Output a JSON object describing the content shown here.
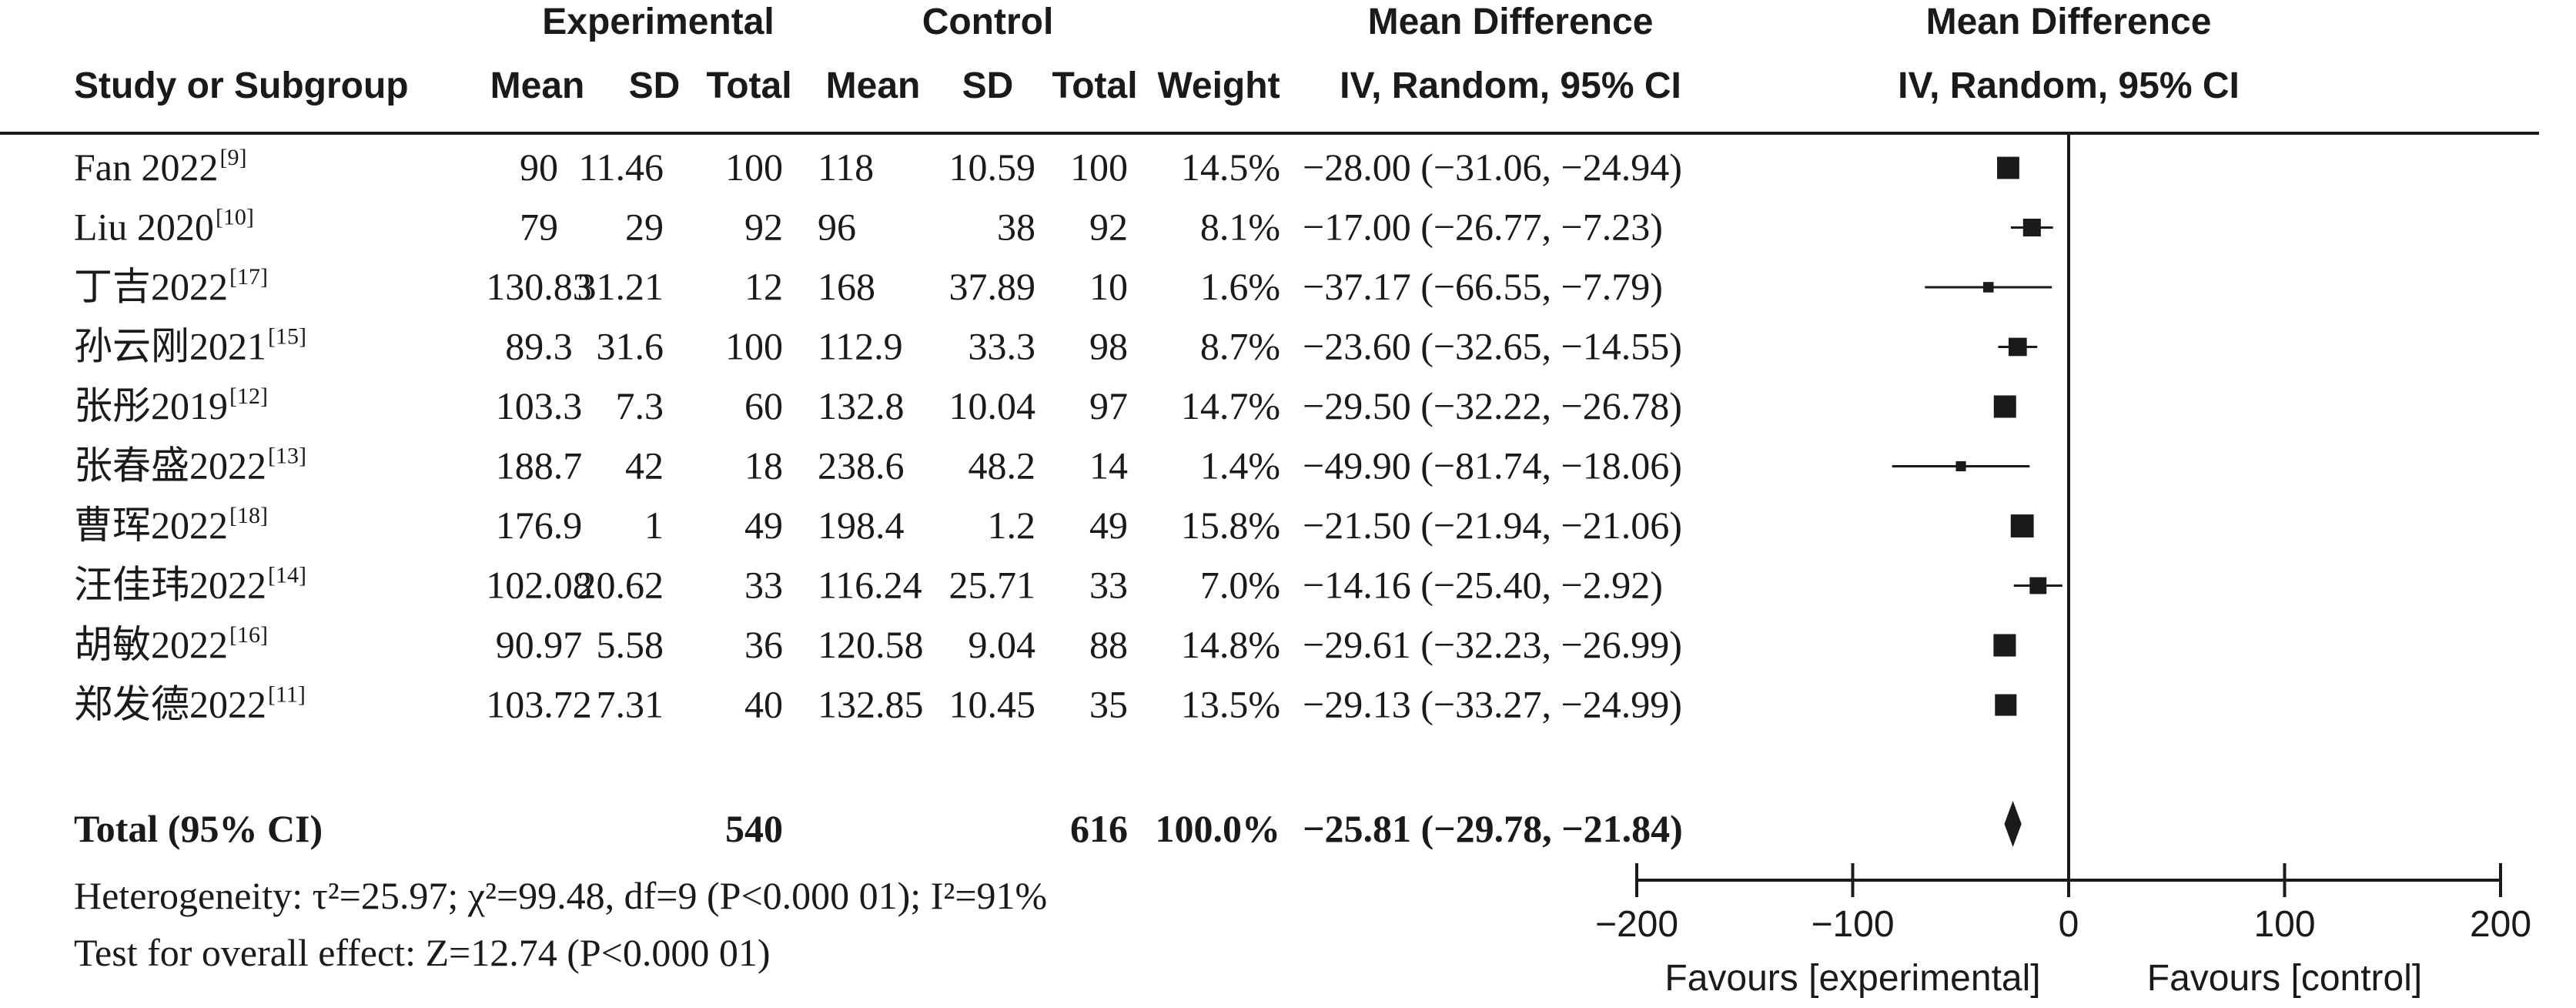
{
  "headers": {
    "experimental": "Experimental",
    "control": "Control",
    "mean_difference": "Mean Difference",
    "mean_difference_plot": "Mean Difference",
    "study": "Study or Subgroup",
    "mean": "Mean",
    "sd": "SD",
    "total": "Total",
    "mean_c": "Mean",
    "sd_c": "SD",
    "total_c": "Total",
    "weight": "Weight",
    "method": "IV, Random, 95% CI",
    "method_plot": "IV, Random, 95% CI"
  },
  "studies": [
    {
      "name": "Fan 2022",
      "ref": "[9]",
      "e_mean": "90",
      "e_sd": "11.46",
      "e_total": "100",
      "c_mean": "118",
      "c_sd": "10.59",
      "c_total": "100",
      "weight": "14.5%",
      "ci_text": "−28.00 (−31.06, −24.94)"
    },
    {
      "name": "Liu 2020",
      "ref": "[10]",
      "e_mean": "79",
      "e_sd": "29",
      "e_total": "92",
      "c_mean": "96",
      "c_sd": "38",
      "c_total": "92",
      "weight": "8.1%",
      "ci_text": "−17.00 (−26.77, −7.23)"
    },
    {
      "name": "丁吉2022",
      "ref": "[17]",
      "e_mean": "130.83",
      "e_sd": "31.21",
      "e_total": "12",
      "c_mean": "168",
      "c_sd": "37.89",
      "c_total": "10",
      "weight": "1.6%",
      "ci_text": "−37.17 (−66.55, −7.79)"
    },
    {
      "name": "孙云刚2021",
      "ref": "[15]",
      "e_mean": "89.3",
      "e_sd": "31.6",
      "e_total": "100",
      "c_mean": "112.9",
      "c_sd": "33.3",
      "c_total": "98",
      "weight": "8.7%",
      "ci_text": "−23.60 (−32.65, −14.55)"
    },
    {
      "name": "张彤2019",
      "ref": "[12]",
      "e_mean": "103.3",
      "e_sd": "7.3",
      "e_total": "60",
      "c_mean": "132.8",
      "c_sd": "10.04",
      "c_total": "97",
      "weight": "14.7%",
      "ci_text": "−29.50 (−32.22, −26.78)"
    },
    {
      "name": "张春盛2022",
      "ref": "[13]",
      "e_mean": "188.7",
      "e_sd": "42",
      "e_total": "18",
      "c_mean": "238.6",
      "c_sd": "48.2",
      "c_total": "14",
      "weight": "1.4%",
      "ci_text": "−49.90 (−81.74, −18.06)"
    },
    {
      "name": "曹珲2022",
      "ref": "[18]",
      "e_mean": "176.9",
      "e_sd": "1",
      "e_total": "49",
      "c_mean": "198.4",
      "c_sd": "1.2",
      "c_total": "49",
      "weight": "15.8%",
      "ci_text": "−21.50 (−21.94, −21.06)"
    },
    {
      "name": "汪佳玮2022",
      "ref": "[14]",
      "e_mean": "102.08",
      "e_sd": "20.62",
      "e_total": "33",
      "c_mean": "116.24",
      "c_sd": "25.71",
      "c_total": "33",
      "weight": "7.0%",
      "ci_text": "−14.16 (−25.40, −2.92)"
    },
    {
      "name": "胡敏2022",
      "ref": "[16]",
      "e_mean": "90.97",
      "e_sd": "5.58",
      "e_total": "36",
      "c_mean": "120.58",
      "c_sd": "9.04",
      "c_total": "88",
      "weight": "14.8%",
      "ci_text": "−29.61 (−32.23, −26.99)"
    },
    {
      "name": "郑发德2022",
      "ref": "[11]",
      "e_mean": "103.72",
      "e_sd": "7.31",
      "e_total": "40",
      "c_mean": "132.85",
      "c_sd": "10.45",
      "c_total": "35",
      "weight": "13.5%",
      "ci_text": "−29.13 (−33.27, −24.99)"
    }
  ],
  "total": {
    "label": "Total (95% CI)",
    "e_total": "540",
    "c_total": "616",
    "weight": "100.0%",
    "ci_text": "−25.81 (−29.78, −21.84)"
  },
  "footer": {
    "heterogeneity": "Heterogeneity: τ²=25.97; χ²=99.48, df=9 (P<0.000 01); I²=91%",
    "overall_effect": "Test for overall effect: Z=12.74 (P<0.000 01)"
  },
  "chart_data": {
    "type": "forest",
    "xlim": [
      -200,
      200
    ],
    "xticks": [
      -200,
      -100,
      0,
      100,
      200
    ],
    "xtick_labels": [
      "−200",
      "−100",
      "0",
      "100",
      "200"
    ],
    "favours_left": "Favours [experimental]",
    "favours_right": "Favours [control]",
    "studies": [
      {
        "md": -28.0,
        "lo": -31.06,
        "hi": -24.94,
        "weight": 14.5
      },
      {
        "md": -17.0,
        "lo": -26.77,
        "hi": -7.23,
        "weight": 8.1
      },
      {
        "md": -37.17,
        "lo": -66.55,
        "hi": -7.79,
        "weight": 1.6
      },
      {
        "md": -23.6,
        "lo": -32.65,
        "hi": -14.55,
        "weight": 8.7
      },
      {
        "md": -29.5,
        "lo": -32.22,
        "hi": -26.78,
        "weight": 14.7
      },
      {
        "md": -49.9,
        "lo": -81.74,
        "hi": -18.06,
        "weight": 1.4
      },
      {
        "md": -21.5,
        "lo": -21.94,
        "hi": -21.06,
        "weight": 15.8
      },
      {
        "md": -14.16,
        "lo": -25.4,
        "hi": -2.92,
        "weight": 7.0
      },
      {
        "md": -29.61,
        "lo": -32.23,
        "hi": -26.99,
        "weight": 14.8
      },
      {
        "md": -29.13,
        "lo": -33.27,
        "hi": -24.99,
        "weight": 13.5
      }
    ],
    "pooled": {
      "md": -25.81,
      "lo": -29.78,
      "hi": -21.84
    }
  }
}
